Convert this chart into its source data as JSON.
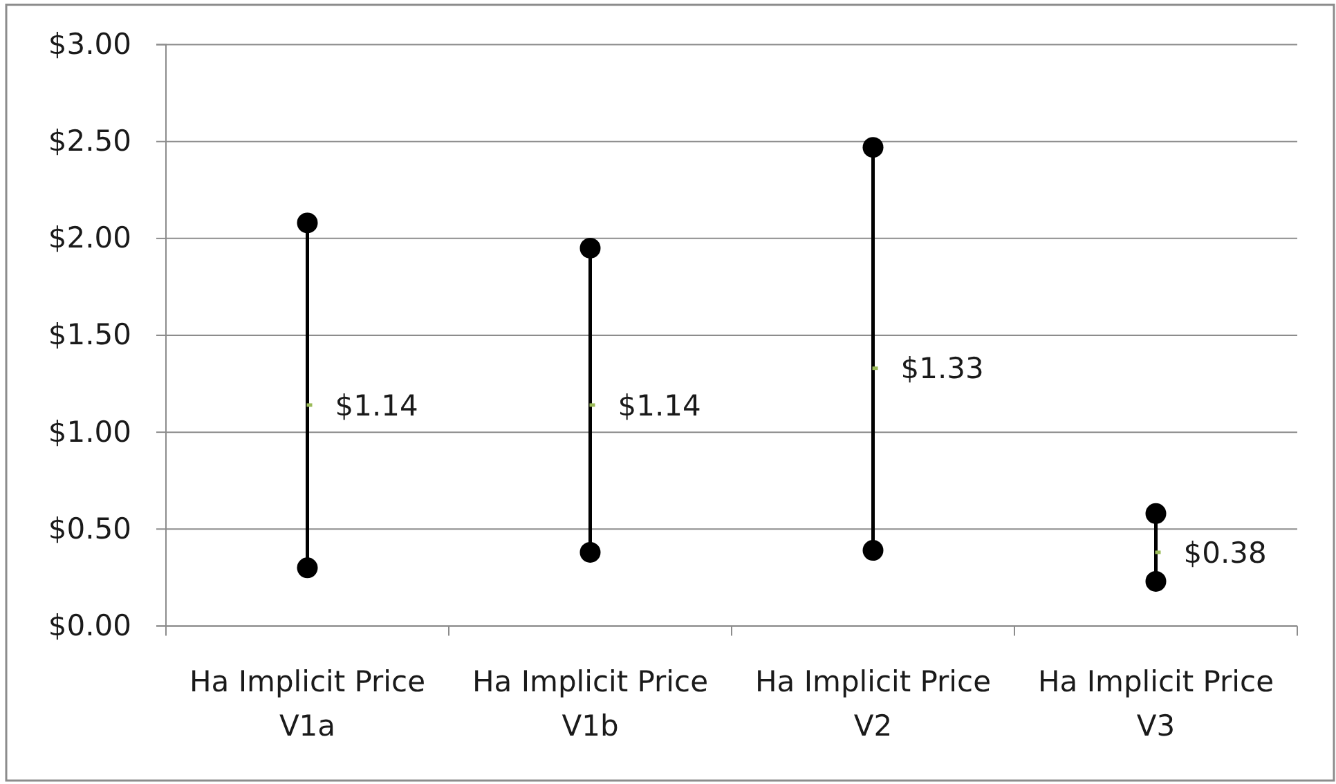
{
  "chart_data": {
    "type": "scatter",
    "categories": [
      "Ha Implicit Price V1a",
      "Ha Implicit Price V1b",
      "Ha Implicit Price V2",
      "Ha Implicit Price V3"
    ],
    "series": [
      {
        "type": "line",
        "x": [
          "Ha Implicit Price V1a",
          "Ha Implicit Price V1a"
        ],
        "values": [
          0.3,
          2.08
        ],
        "color": "#000000",
        "marker": "circle"
      },
      {
        "type": "line",
        "x": [
          "Ha Implicit Price V1b",
          "Ha Implicit Price V1b"
        ],
        "values": [
          0.38,
          1.95
        ],
        "color": "#000000",
        "marker": "circle"
      },
      {
        "type": "line",
        "x": [
          "Ha Implicit Price V2",
          "Ha Implicit Price V2"
        ],
        "values": [
          0.39,
          2.47
        ],
        "color": "#000000",
        "marker": "circle"
      },
      {
        "type": "line",
        "x": [
          "Ha Implicit Price V3",
          "Ha Implicit Price V3"
        ],
        "values": [
          0.23,
          0.58
        ],
        "color": "#000000",
        "marker": "circle"
      },
      {
        "values": [
          1.14,
          1.14,
          1.33,
          0.38
        ],
        "color": "#9bbb59",
        "marker": "square",
        "value_labels": [
          "$1.14",
          "$1.14",
          "$1.33",
          "$0.38"
        ]
      }
    ],
    "ylim": [
      0,
      3
    ],
    "yticks": [
      {
        "value": 0,
        "label": "$0.00"
      },
      {
        "value": 0.5,
        "label": "$0.50"
      },
      {
        "value": 1,
        "label": "$1.00"
      },
      {
        "value": 1.5,
        "label": "$1.50"
      },
      {
        "value": 2,
        "label": "$2.00"
      },
      {
        "value": 2.5,
        "label": "$2.50"
      },
      {
        "value": 3,
        "label": "$3.00"
      }
    ],
    "grid": "y"
  }
}
